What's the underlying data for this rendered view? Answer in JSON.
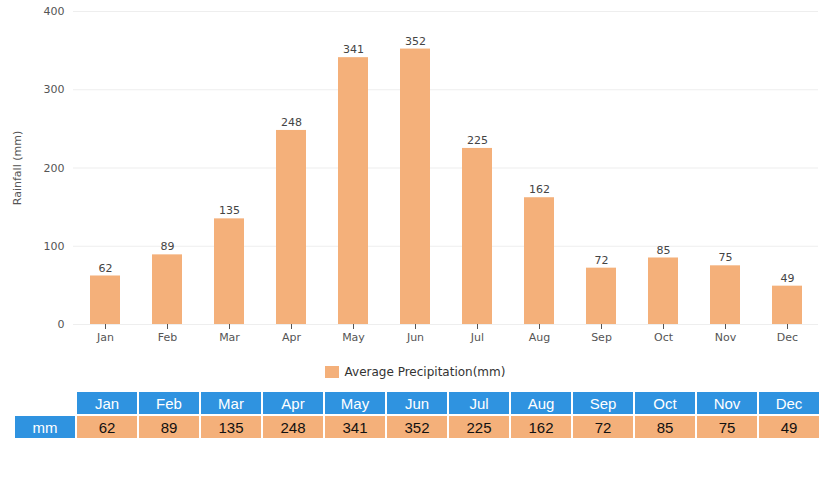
{
  "chart_data": {
    "type": "bar",
    "categories": [
      "Jan",
      "Feb",
      "Mar",
      "Apr",
      "May",
      "Jun",
      "Jul",
      "Aug",
      "Sep",
      "Oct",
      "Nov",
      "Dec"
    ],
    "series": [
      {
        "name": "Average Precipitation(mm)",
        "color": "#f4b07a",
        "values": [
          62,
          89,
          135,
          248,
          341,
          352,
          225,
          162,
          72,
          85,
          75,
          49
        ]
      }
    ],
    "y_label": "Rainfall (mm)",
    "ylim": [
      0,
      400
    ],
    "yticks": [
      0,
      100,
      200,
      300,
      400
    ],
    "grid": true,
    "data_labels": true,
    "legend": "bottom"
  },
  "table": {
    "columns": [
      "Jan",
      "Feb",
      "Mar",
      "Apr",
      "May",
      "Jun",
      "Jul",
      "Aug",
      "Sep",
      "Oct",
      "Nov",
      "Dec"
    ],
    "rows": [
      {
        "label": "mm",
        "values": [
          62,
          89,
          135,
          248,
          341,
          352,
          225,
          162,
          72,
          85,
          75,
          49
        ]
      }
    ]
  }
}
